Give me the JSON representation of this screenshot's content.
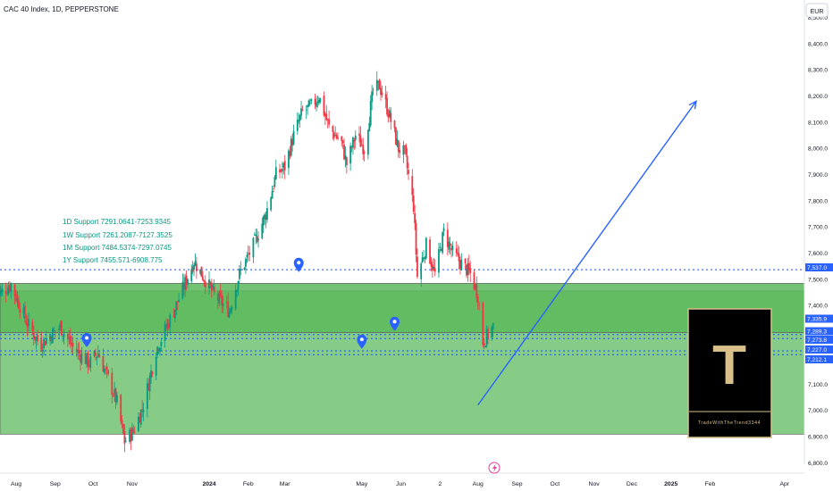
{
  "header": {
    "title": "CAC 40 Index, 1D, PEPPERSTONE"
  },
  "currency": "EUR",
  "watermark": {
    "title": "TradeWithTheTrend3344",
    "letter": "T"
  },
  "support_labels": [
    "1D Support 7291.0641-7253.9345",
    "1W Support 7261.2087-7127.3525",
    "1M Support 7484.5374-7297.0745",
    "1Y Support 7455.571-6908.775"
  ],
  "price_tags": [
    {
      "value": 7537.0,
      "label": "7,537.0",
      "color": "#2962ff"
    },
    {
      "value": 7335.9,
      "label": "7,335.9",
      "color": "#2962ff"
    },
    {
      "value": 7289.3,
      "label": "7,289.3",
      "color": "#2962ff"
    },
    {
      "value": 7273.8,
      "label": "7,273.8",
      "color": "#2962ff"
    },
    {
      "value": 7227.0,
      "label": "7,227.0",
      "color": "#2962ff"
    },
    {
      "value": 7212.1,
      "label": "7,212.1",
      "color": "#2962ff"
    }
  ],
  "colors": {
    "up": "#089981",
    "down": "#f23645",
    "zone_light": "#7fc97f",
    "zone_dark": "#5cb85c",
    "line_blue": "#2962ff",
    "axis_text": "#131722",
    "watermark_bg": "#000000",
    "watermark_gold": "#d9c08a"
  },
  "chart_data": {
    "type": "candlestick",
    "symbol": "CAC 40 Index",
    "timeframe": "1D",
    "source": "PEPPERSTONE",
    "currency": "EUR",
    "ylim": [
      6750,
      8600
    ],
    "y_ticks": [
      "8,500.0",
      "8,400.0",
      "8,300.0",
      "8,200.0",
      "8,100.0",
      "8,000.0",
      "7,900.0",
      "7,800.0",
      "7,700.0",
      "7,600.0",
      "7,500.0",
      "7,400.0",
      "7,300.0",
      "7,200.0",
      "7,100.0",
      "7,000.0",
      "6,900.0",
      "6,800.0"
    ],
    "x_ticks": [
      "Aug",
      "Sep",
      "Oct",
      "Nov",
      "2024",
      "Feb",
      "Mar",
      "May",
      "Jun",
      "2",
      "Aug",
      "Sep",
      "Oct",
      "Nov",
      "Dec",
      "2025",
      "Feb",
      "Apr"
    ],
    "x_tick_dates": [
      "2023-08-01",
      "2023-09-01",
      "2023-10-01",
      "2023-11-01",
      "2024-01-01",
      "2024-02-01",
      "2024-03-01",
      "2024-05-01",
      "2024-06-01",
      "2024-07-02",
      "2024-08-01",
      "2024-09-01",
      "2024-10-01",
      "2024-11-01",
      "2024-12-01",
      "2025-01-01",
      "2025-02-01",
      "2025-04-01"
    ],
    "close_path": [
      [
        "2023-07-15",
        7430
      ],
      [
        "2023-07-28",
        7480
      ],
      [
        "2023-08-10",
        7330
      ],
      [
        "2023-08-20",
        7250
      ],
      [
        "2023-09-05",
        7320
      ],
      [
        "2023-09-15",
        7240
      ],
      [
        "2023-09-28",
        7180
      ],
      [
        "2023-10-05",
        7220
      ],
      [
        "2023-10-13",
        7120
      ],
      [
        "2023-10-20",
        7030
      ],
      [
        "2023-10-26",
        6880
      ],
      [
        "2023-11-02",
        6920
      ],
      [
        "2023-11-10",
        7020
      ],
      [
        "2023-11-20",
        7230
      ],
      [
        "2023-12-05",
        7390
      ],
      [
        "2023-12-20",
        7570
      ],
      [
        "2024-01-05",
        7440
      ],
      [
        "2024-01-17",
        7380
      ],
      [
        "2024-01-25",
        7520
      ],
      [
        "2024-02-05",
        7630
      ],
      [
        "2024-02-15",
        7750
      ],
      [
        "2024-02-23",
        7900
      ],
      [
        "2024-03-01",
        7930
      ],
      [
        "2024-03-08",
        8050
      ],
      [
        "2024-03-15",
        8140
      ],
      [
        "2024-03-22",
        8160
      ],
      [
        "2024-03-28",
        8200
      ],
      [
        "2024-04-05",
        8080
      ],
      [
        "2024-04-15",
        8020
      ],
      [
        "2024-04-19",
        7940
      ],
      [
        "2024-04-26",
        8050
      ],
      [
        "2024-05-03",
        8000
      ],
      [
        "2024-05-10",
        8220
      ],
      [
        "2024-05-15",
        8240
      ],
      [
        "2024-05-22",
        8140
      ],
      [
        "2024-05-30",
        8000
      ],
      [
        "2024-06-04",
        7980
      ],
      [
        "2024-06-11",
        7780
      ],
      [
        "2024-06-14",
        7510
      ],
      [
        "2024-06-21",
        7630
      ],
      [
        "2024-06-28",
        7520
      ],
      [
        "2024-07-05",
        7680
      ],
      [
        "2024-07-12",
        7600
      ],
      [
        "2024-07-19",
        7560
      ],
      [
        "2024-07-26",
        7520
      ],
      [
        "2024-08-01",
        7440
      ],
      [
        "2024-08-05",
        7260
      ],
      [
        "2024-08-09",
        7290
      ],
      [
        "2024-08-13",
        7320
      ]
    ],
    "zones": [
      {
        "name": "1Y Support",
        "from": 6908.775,
        "to": 7455.571
      },
      {
        "name": "1M Support",
        "from": 7297.0745,
        "to": 7484.5374
      }
    ],
    "horizontal_levels": [
      7537.0,
      7289.3,
      7273.8,
      7227.0,
      7212.1
    ],
    "projection_arrow": {
      "from": [
        "2024-08-01",
        7020
      ],
      "to": [
        "2025-01-21",
        8180
      ]
    },
    "markers": [
      {
        "date": "2023-09-26",
        "value": 7268
      },
      {
        "date": "2024-03-12",
        "value": 7555
      },
      {
        "date": "2024-05-01",
        "value": 7262
      },
      {
        "date": "2024-05-27",
        "value": 7330
      }
    ]
  }
}
